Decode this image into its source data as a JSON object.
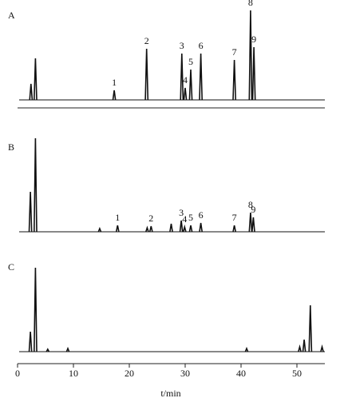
{
  "chart_data": {
    "type": "chromatogram",
    "x_label": "t/min",
    "xlim": [
      0,
      55
    ],
    "xticks": [
      0,
      10,
      20,
      30,
      40,
      50
    ],
    "ylim": [
      0,
      120
    ],
    "color": "#111111",
    "series": [
      {
        "name": "A",
        "x": [
          2.4,
          3.2,
          17.3,
          23.1,
          29.4,
          30.0,
          31.0,
          32.8,
          38.8,
          41.7,
          42.3
        ],
        "values": [
          20,
          52,
          12,
          64,
          58,
          15,
          38,
          58,
          50,
          112,
          66
        ],
        "peak_labels": [
          null,
          null,
          "1",
          "2",
          "3",
          "4",
          "5",
          "6",
          "7",
          "8",
          "9"
        ]
      },
      {
        "name": "B",
        "x": [
          2.3,
          3.2,
          14.7,
          17.9,
          23.2,
          23.9,
          27.5,
          29.3,
          29.9,
          31.0,
          32.8,
          38.8,
          41.7,
          42.2
        ],
        "values": [
          50,
          117,
          4,
          8,
          5,
          7,
          10,
          14,
          6,
          8,
          11,
          8,
          24,
          18
        ],
        "peak_labels": [
          null,
          null,
          null,
          "1",
          null,
          "2",
          null,
          "3",
          "4",
          "5",
          "6",
          "7",
          "8",
          "9"
        ]
      },
      {
        "name": "C",
        "x": [
          2.3,
          3.2,
          5.4,
          9.0,
          41.0,
          50.5,
          51.3,
          52.4,
          54.5
        ],
        "values": [
          25,
          105,
          3,
          4,
          4,
          6,
          15,
          58,
          6
        ],
        "peak_labels": [
          null,
          null,
          null,
          null,
          null,
          null,
          null,
          null,
          null
        ]
      }
    ]
  }
}
